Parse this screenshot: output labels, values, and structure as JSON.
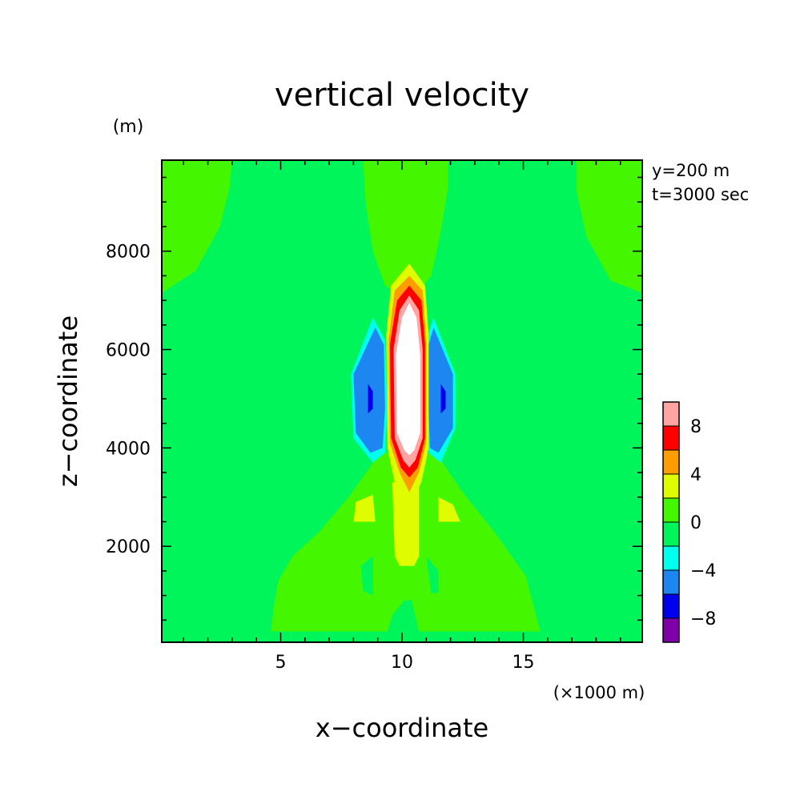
{
  "chart_data": {
    "type": "contour",
    "title": "vertical velocity",
    "xlabel": "x−coordinate",
    "ylabel": "z−coordinate",
    "x_unit": "(×1000 m)",
    "y_unit": "(m)",
    "xlim": [
      0.1,
      19.9
    ],
    "ylim": [
      50,
      9850
    ],
    "x_ticks": [
      5,
      10,
      15
    ],
    "x_tick_labels": [
      "5",
      "10",
      "15"
    ],
    "y_ticks": [
      2000,
      4000,
      6000,
      8000
    ],
    "y_tick_labels": [
      "2000",
      "4000",
      "6000",
      "8000"
    ],
    "annotations": [
      "y=200 m",
      "t=3000 sec"
    ],
    "colorbar": {
      "levels": [
        -10,
        -8,
        -6,
        -4,
        -2,
        0,
        2,
        4,
        6,
        8,
        10
      ],
      "tick_values": [
        -8,
        -4,
        0,
        4,
        8
      ],
      "tick_labels": [
        "−8",
        "−4",
        "0",
        "4",
        "8"
      ],
      "colors": [
        "#7f00a8",
        "#0000ee",
        "#1e86f0",
        "#00ffee",
        "#00f55a",
        "#44f700",
        "#e0fc00",
        "#ff9d00",
        "#ff0000",
        "#ffa3a3"
      ],
      "above_max_color": "#ffffff"
    },
    "regions": [
      {
        "name": "top-left-positive",
        "level": "0 to 2",
        "polygon": [
          [
            0.1,
            9850
          ],
          [
            3.0,
            9850
          ],
          [
            2.9,
            9300
          ],
          [
            2.5,
            8500
          ],
          [
            1.5,
            7600
          ],
          [
            0.1,
            7150
          ]
        ]
      },
      {
        "name": "top-center-positive",
        "level": "0 to 2",
        "polygon": [
          [
            8.4,
            9850
          ],
          [
            11.9,
            9850
          ],
          [
            11.9,
            9300
          ],
          [
            11.6,
            8400
          ],
          [
            11.2,
            7500
          ],
          [
            10.4,
            7000
          ],
          [
            9.3,
            7300
          ],
          [
            8.8,
            8000
          ],
          [
            8.5,
            9000
          ]
        ]
      },
      {
        "name": "top-right-positive",
        "level": "0 to 2",
        "polygon": [
          [
            17.2,
            9850
          ],
          [
            19.9,
            9850
          ],
          [
            19.9,
            7150
          ],
          [
            18.6,
            7400
          ],
          [
            17.6,
            8300
          ],
          [
            17.2,
            9200
          ]
        ]
      },
      {
        "name": "lower-positive",
        "level": "0 to 2",
        "polygon": [
          [
            4.6,
            270
          ],
          [
            15.7,
            270
          ],
          [
            15.1,
            1400
          ],
          [
            13.8,
            2300
          ],
          [
            12.5,
            3100
          ],
          [
            11.4,
            3900
          ],
          [
            9.1,
            3900
          ],
          [
            7.8,
            3000
          ],
          [
            6.6,
            2300
          ],
          [
            5.5,
            1800
          ],
          [
            4.9,
            1300
          ],
          [
            4.7,
            700
          ]
        ]
      },
      {
        "name": "bottom-center-negative",
        "level": "-2 to 0",
        "polygon": [
          [
            9.4,
            270
          ],
          [
            10.7,
            270
          ],
          [
            10.4,
            900
          ],
          [
            10.1,
            900
          ],
          [
            9.6,
            600
          ]
        ]
      },
      {
        "name": "left-mid-negative",
        "level": "-2 to 0",
        "polygon": [
          [
            8.3,
            1600
          ],
          [
            8.8,
            1800
          ],
          [
            8.8,
            1000
          ],
          [
            8.4,
            1100
          ]
        ]
      },
      {
        "name": "right-mid-negative",
        "level": "-2 to 0",
        "polygon": [
          [
            11.0,
            1800
          ],
          [
            11.5,
            1500
          ],
          [
            11.5,
            1050
          ],
          [
            11.2,
            1050
          ]
        ]
      },
      {
        "name": "left-lobe-positive",
        "level": "2 to 4",
        "polygon": [
          [
            8.1,
            2900
          ],
          [
            8.8,
            3050
          ],
          [
            8.9,
            2500
          ],
          [
            8.0,
            2500
          ]
        ]
      },
      {
        "name": "right-lobe-positive",
        "level": "2 to 4",
        "polygon": [
          [
            11.5,
            3000
          ],
          [
            12.1,
            2850
          ],
          [
            12.4,
            2500
          ],
          [
            11.5,
            2500
          ]
        ]
      },
      {
        "name": "stem-positive",
        "level": "2 to 4",
        "polygon": [
          [
            9.6,
            3300
          ],
          [
            10.7,
            3300
          ],
          [
            10.7,
            1800
          ],
          [
            10.5,
            1600
          ],
          [
            9.9,
            1600
          ],
          [
            9.7,
            1800
          ]
        ]
      },
      {
        "name": "left-flank-weak",
        "level": "-4 to -2",
        "polygon": [
          [
            8.8,
            6650
          ],
          [
            9.3,
            6200
          ],
          [
            9.4,
            4800
          ],
          [
            9.3,
            3900
          ],
          [
            8.8,
            3700
          ],
          [
            8.0,
            4200
          ],
          [
            7.9,
            5500
          ]
        ]
      },
      {
        "name": "left-flank-moderate",
        "level": "-6 to -4",
        "polygon": [
          [
            8.9,
            6450
          ],
          [
            9.25,
            6100
          ],
          [
            9.3,
            4800
          ],
          [
            9.2,
            4000
          ],
          [
            8.7,
            3900
          ],
          [
            8.1,
            4300
          ],
          [
            8.0,
            5500
          ]
        ]
      },
      {
        "name": "left-flank-strong",
        "level": "-8 to -6",
        "polygon": [
          [
            8.6,
            5300
          ],
          [
            8.8,
            5150
          ],
          [
            8.8,
            4800
          ],
          [
            8.6,
            4700
          ]
        ]
      },
      {
        "name": "right-flank-weak",
        "level": "-4 to -2",
        "polygon": [
          [
            11.3,
            6650
          ],
          [
            12.2,
            5500
          ],
          [
            12.2,
            4400
          ],
          [
            11.6,
            3700
          ],
          [
            11.1,
            3900
          ],
          [
            11.0,
            4800
          ],
          [
            11.0,
            6200
          ]
        ]
      },
      {
        "name": "right-flank-moderate",
        "level": "-6 to -4",
        "polygon": [
          [
            11.3,
            6450
          ],
          [
            12.1,
            5500
          ],
          [
            12.1,
            4400
          ],
          [
            11.5,
            3900
          ],
          [
            11.15,
            4000
          ],
          [
            11.1,
            4800
          ],
          [
            11.1,
            6100
          ]
        ]
      },
      {
        "name": "right-flank-strong",
        "level": "-8 to -6",
        "polygon": [
          [
            11.6,
            5300
          ],
          [
            11.8,
            5150
          ],
          [
            11.8,
            4800
          ],
          [
            11.6,
            4700
          ]
        ]
      },
      {
        "name": "updraft-core-2",
        "level": "2 to 4",
        "polygon": [
          [
            10.3,
            7750
          ],
          [
            10.95,
            7300
          ],
          [
            11.1,
            6300
          ],
          [
            11.1,
            4000
          ],
          [
            10.8,
            3300
          ],
          [
            10.3,
            2800
          ],
          [
            9.7,
            3300
          ],
          [
            9.4,
            4000
          ],
          [
            9.35,
            6300
          ],
          [
            9.55,
            7300
          ]
        ]
      },
      {
        "name": "updraft-core-4",
        "level": "4 to 6",
        "polygon": [
          [
            10.3,
            7500
          ],
          [
            10.85,
            7200
          ],
          [
            11.0,
            6200
          ],
          [
            11.0,
            4100
          ],
          [
            10.7,
            3500
          ],
          [
            10.3,
            3100
          ],
          [
            9.9,
            3500
          ],
          [
            9.5,
            4100
          ],
          [
            9.45,
            6200
          ],
          [
            9.7,
            7200
          ]
        ]
      },
      {
        "name": "updraft-core-6",
        "level": "6 to 8",
        "polygon": [
          [
            10.3,
            7300
          ],
          [
            10.8,
            7000
          ],
          [
            10.95,
            6100
          ],
          [
            10.95,
            4200
          ],
          [
            10.65,
            3600
          ],
          [
            10.3,
            3400
          ],
          [
            9.95,
            3600
          ],
          [
            9.55,
            4200
          ],
          [
            9.5,
            6100
          ],
          [
            9.8,
            7000
          ]
        ]
      },
      {
        "name": "updraft-core-8",
        "level": "8 to 10",
        "polygon": [
          [
            10.3,
            7100
          ],
          [
            10.7,
            6800
          ],
          [
            10.85,
            6000
          ],
          [
            10.85,
            4200
          ],
          [
            10.55,
            3750
          ],
          [
            10.3,
            3600
          ],
          [
            10.05,
            3750
          ],
          [
            9.7,
            4200
          ],
          [
            9.65,
            6000
          ],
          [
            9.9,
            6800
          ]
        ]
      },
      {
        "name": "updraft-core-max",
        "level": "> 10",
        "polygon": [
          [
            10.3,
            6950
          ],
          [
            10.6,
            6650
          ],
          [
            10.75,
            5900
          ],
          [
            10.75,
            4300
          ],
          [
            10.5,
            3950
          ],
          [
            10.3,
            3850
          ],
          [
            10.1,
            3950
          ],
          [
            9.8,
            4300
          ],
          [
            9.75,
            5900
          ],
          [
            10.0,
            6650
          ]
        ]
      }
    ]
  }
}
